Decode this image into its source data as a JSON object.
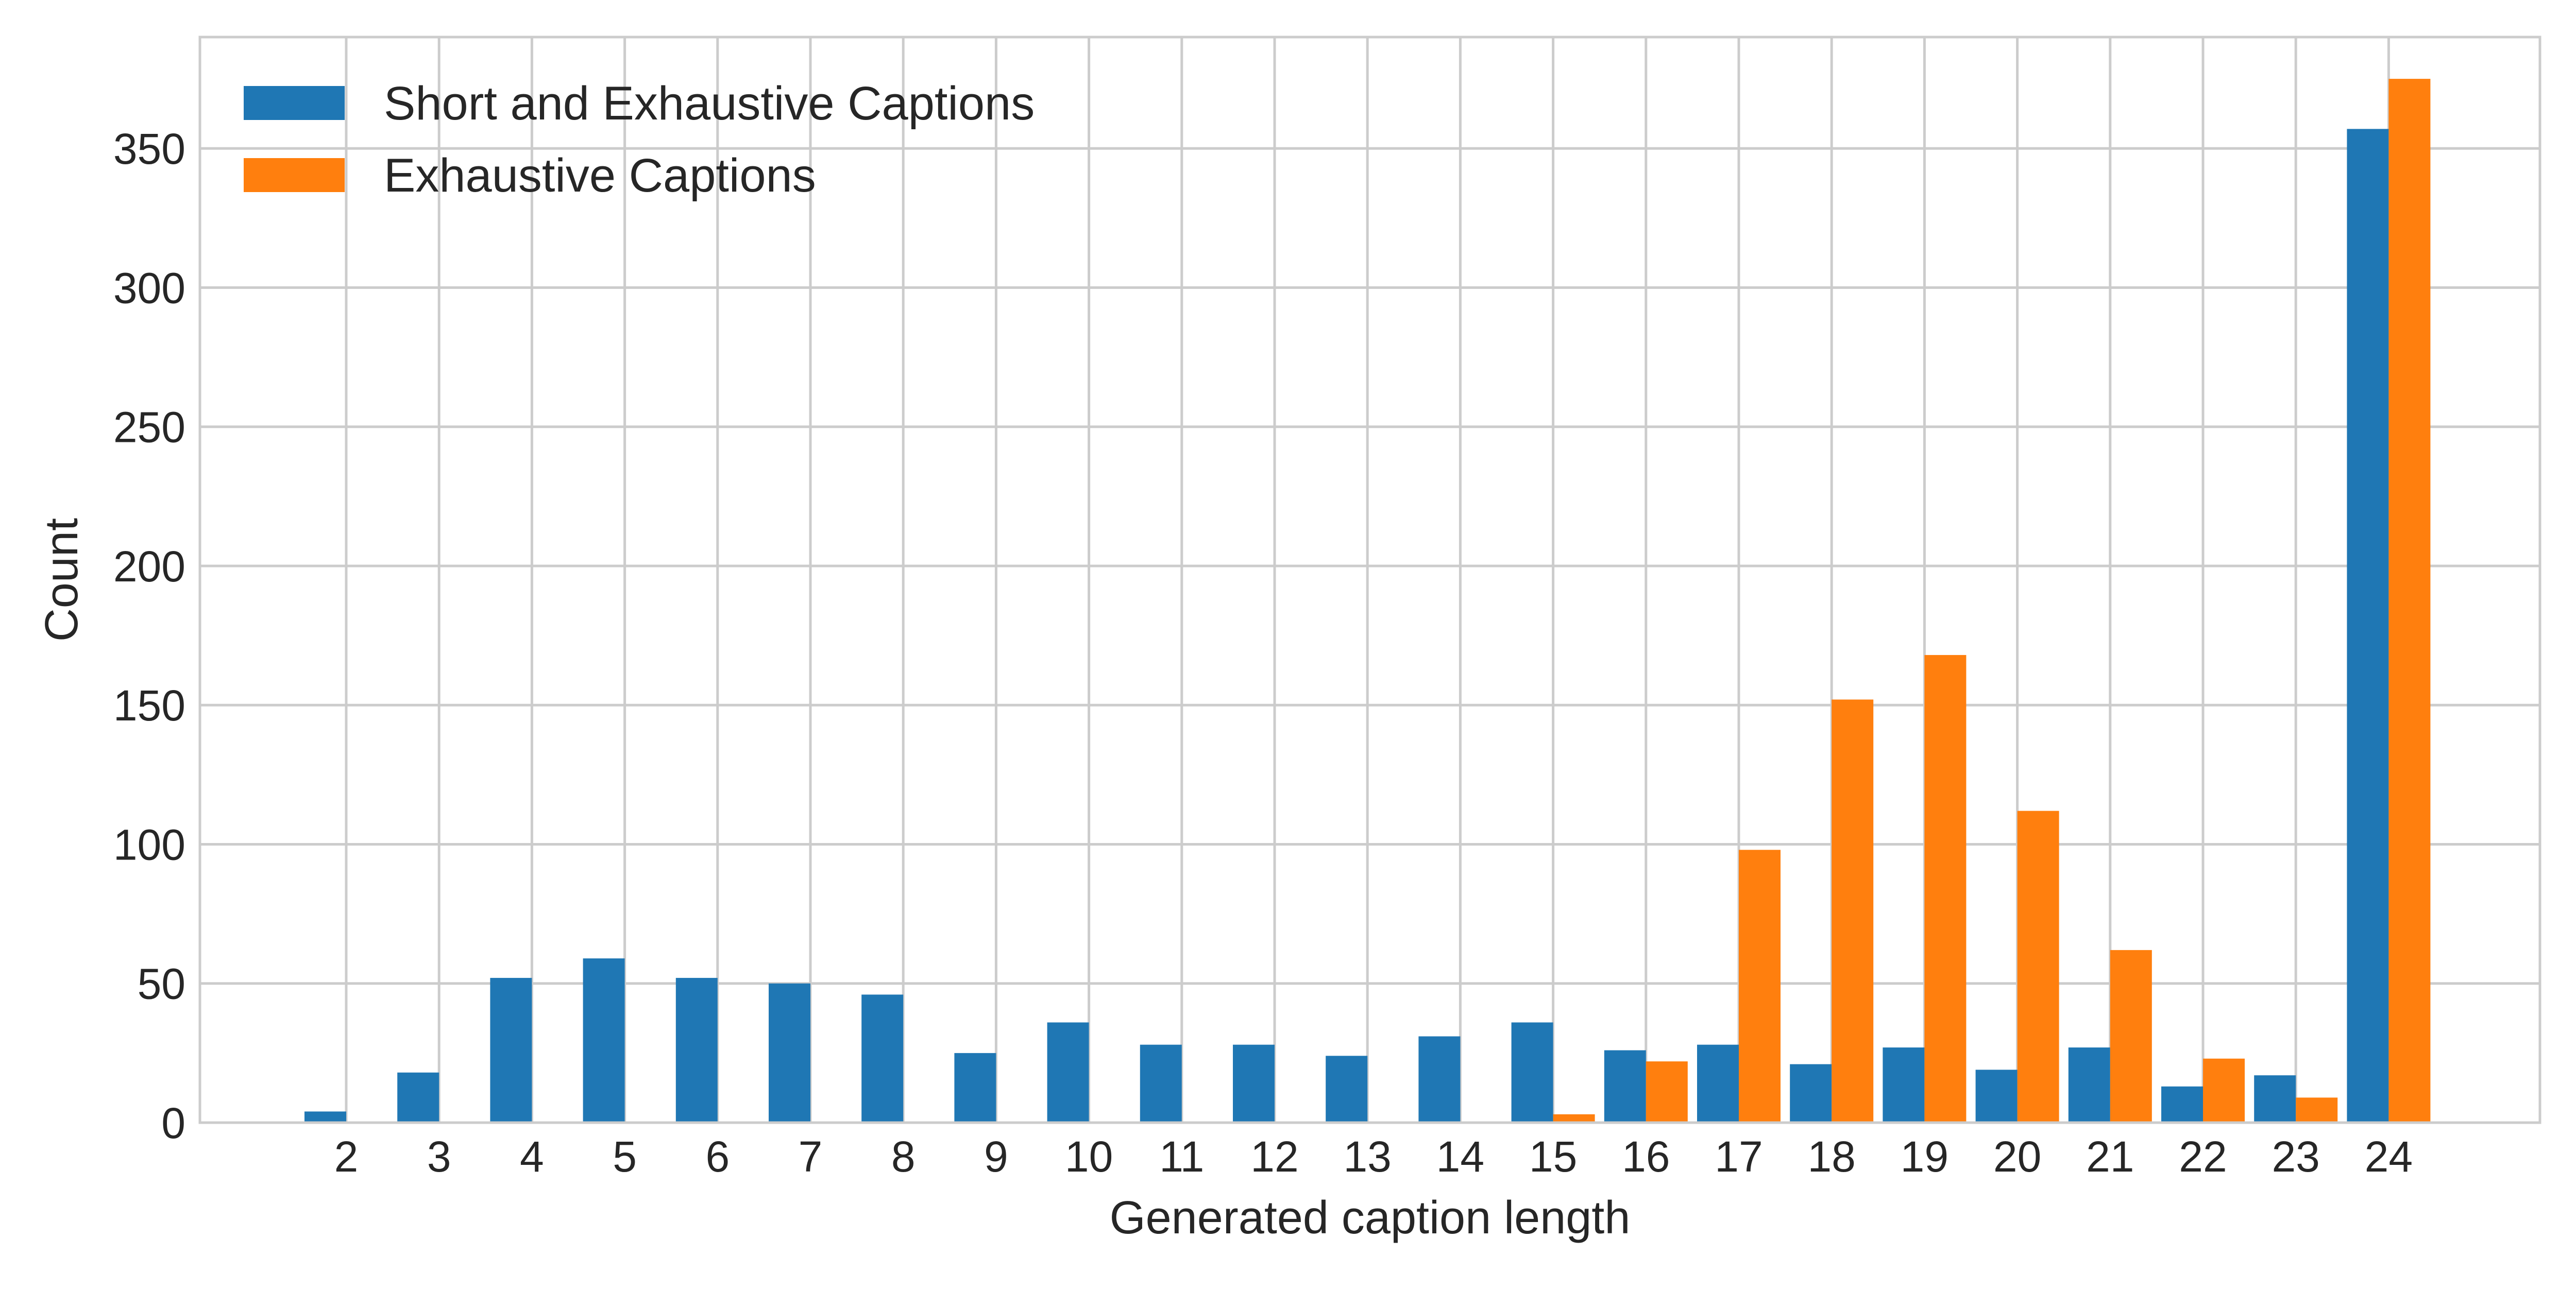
{
  "chart_data": {
    "type": "bar",
    "title": "",
    "xlabel": "Generated caption length",
    "ylabel": "Count",
    "categories": [
      "2",
      "3",
      "4",
      "5",
      "6",
      "7",
      "8",
      "9",
      "10",
      "11",
      "12",
      "13",
      "14",
      "15",
      "16",
      "17",
      "18",
      "19",
      "20",
      "21",
      "22",
      "23",
      "24"
    ],
    "series": [
      {
        "name": "Short and Exhaustive Captions",
        "color": "#1f77b4",
        "values": [
          4,
          18,
          52,
          59,
          52,
          50,
          46,
          25,
          36,
          28,
          28,
          24,
          31,
          36,
          26,
          28,
          21,
          27,
          19,
          27,
          13,
          17,
          357
        ]
      },
      {
        "name": "Exhaustive Captions",
        "color": "#ff7f0e",
        "values": [
          0,
          0,
          0,
          0,
          0,
          0,
          0,
          0,
          0,
          0,
          0,
          0,
          0,
          3,
          22,
          98,
          152,
          168,
          112,
          62,
          23,
          9,
          375
        ]
      }
    ],
    "ylim": [
      0,
      390
    ],
    "yticks": [
      "0",
      "50",
      "100",
      "150",
      "200",
      "250",
      "300",
      "350"
    ],
    "grid": true,
    "legend_position": "top-left"
  }
}
